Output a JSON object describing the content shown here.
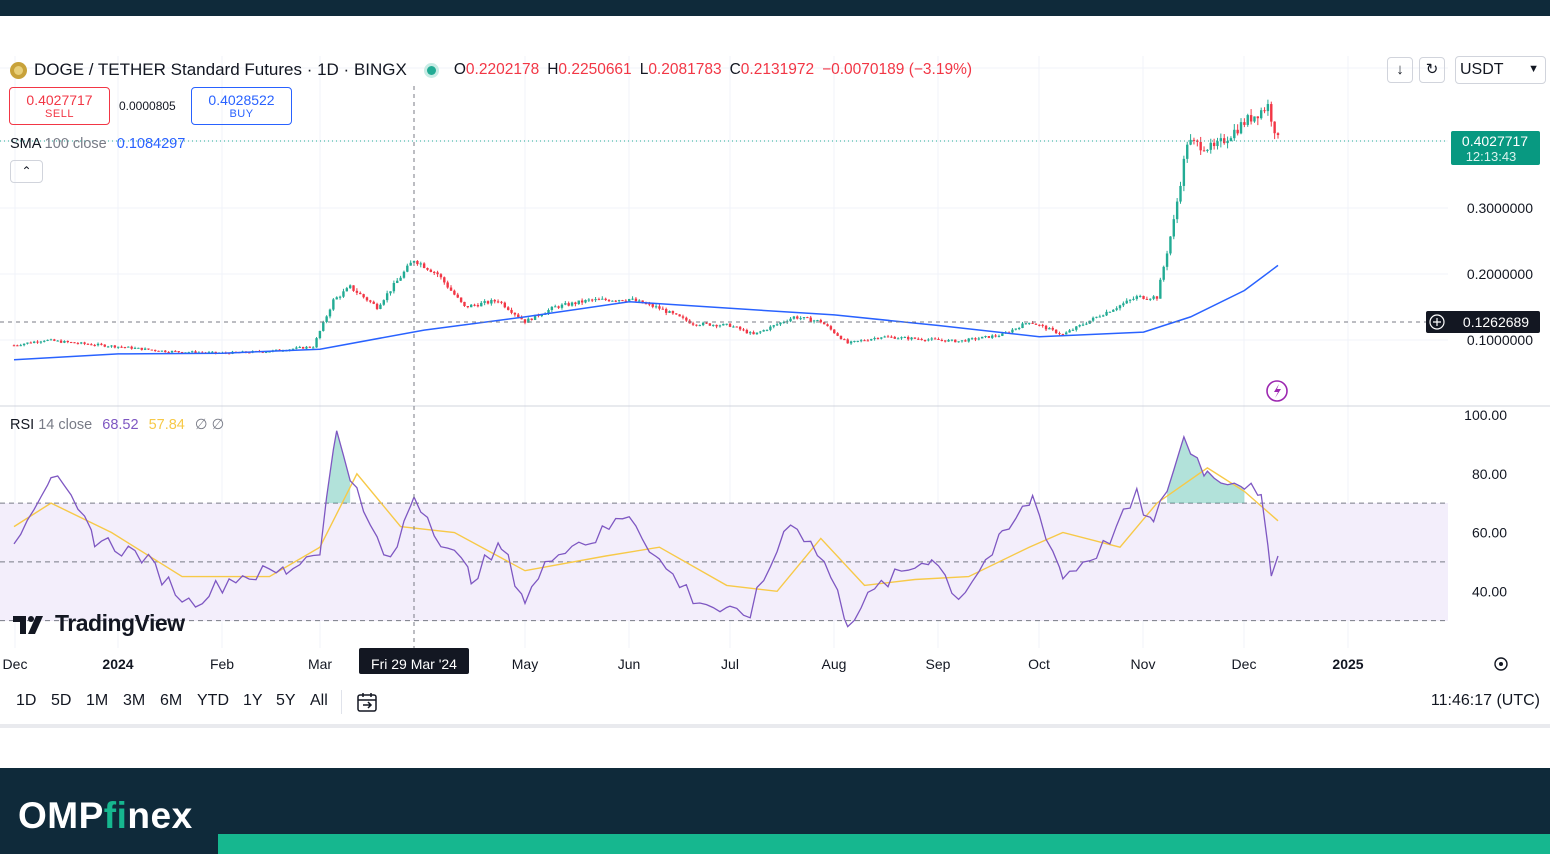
{
  "header": {
    "title": "DOGE / TETHER Standard Futures · 1D · BINGX",
    "ohlc": [
      {
        "k": "O",
        "v": "0.2202178"
      },
      {
        "k": "H",
        "v": "0.2250661"
      },
      {
        "k": "L",
        "v": "0.2081783"
      },
      {
        "k": "C",
        "v": "0.2131972"
      }
    ],
    "change": "−0.0070189 (−3.19%)"
  },
  "trade": {
    "sell_price": "0.4027717",
    "sell_label": "SELL",
    "spread": "0.0000805",
    "buy_price": "0.4028522",
    "buy_label": "BUY"
  },
  "sma_legend": {
    "name": "SMA",
    "params": "100 close",
    "value": "0.1084297"
  },
  "rsi_legend": {
    "name": "RSI",
    "params": "14 close",
    "rsi_value": "68.52",
    "ma_value": "57.84",
    "nulls": "∅ ∅"
  },
  "toolbar": {
    "currency": "USDT",
    "download_icon": "download-icon",
    "sync_icon": "sync-icon"
  },
  "branding": {
    "tradingview": "TradingView",
    "omp": "OMP",
    "fi": "fi",
    "nex": "nex"
  },
  "range_bar": {
    "buttons": [
      "1D",
      "5D",
      "1M",
      "3M",
      "6M",
      "YTD",
      "1Y",
      "5Y",
      "All"
    ],
    "clock": "11:46:17 (UTC)"
  },
  "colors": {
    "up": "#22ab94",
    "down": "#f23645",
    "sma": "#2962ff",
    "rsi": "#7e57c2",
    "rsi_ma": "#f7c948",
    "footer": "#0f2a3a",
    "accent": "#16b78f"
  },
  "chart_data": [
    {
      "type": "candlestick",
      "title": "DOGE / TETHER Standard Futures · 1D · BINGX",
      "x_ticks": [
        "Dec",
        "2024",
        "Feb",
        "Mar",
        "May",
        "Jun",
        "Jul",
        "Aug",
        "Sep",
        "Oct",
        "Nov",
        "Dec",
        "2025"
      ],
      "crosshair_date": "Fri 29 Mar '24",
      "crosshair_price": "0.1262689",
      "y_ticks": [
        "0.3000000",
        "0.2000000",
        "0.1000000"
      ],
      "ylim": [
        0.05,
        0.47
      ],
      "last_price": "0.4027717",
      "countdown": "12:13:43",
      "series": [
        {
          "name": "SMA 100 close",
          "points": [
            [
              "2023-12-01",
              0.07
            ],
            [
              "2024-01-01",
              0.079
            ],
            [
              "2024-02-01",
              0.08
            ],
            [
              "2024-03-01",
              0.086
            ],
            [
              "2024-04-01",
              0.115
            ],
            [
              "2024-05-01",
              0.135
            ],
            [
              "2024-06-01",
              0.158
            ],
            [
              "2024-07-01",
              0.148
            ],
            [
              "2024-08-01",
              0.138
            ],
            [
              "2024-09-01",
              0.122
            ],
            [
              "2024-10-01",
              0.105
            ],
            [
              "2024-11-01",
              0.112
            ],
            [
              "2024-11-15",
              0.135
            ],
            [
              "2024-12-01",
              0.175
            ],
            [
              "2024-12-11",
              0.213
            ]
          ]
        }
      ],
      "candles": [
        {
          "d": "2023-12-01",
          "c": 0.092
        },
        {
          "d": "2023-12-10",
          "c": 0.1
        },
        {
          "d": "2023-12-20",
          "c": 0.095
        },
        {
          "d": "2024-01-01",
          "c": 0.09
        },
        {
          "d": "2024-01-15",
          "c": 0.083
        },
        {
          "d": "2024-02-01",
          "c": 0.08
        },
        {
          "d": "2024-02-15",
          "c": 0.083
        },
        {
          "d": "2024-02-28",
          "c": 0.09
        },
        {
          "d": "2024-03-05",
          "c": 0.16
        },
        {
          "d": "2024-03-10",
          "c": 0.18
        },
        {
          "d": "2024-03-18",
          "c": 0.15
        },
        {
          "d": "2024-03-29",
          "c": 0.222
        },
        {
          "d": "2024-04-05",
          "c": 0.2
        },
        {
          "d": "2024-04-13",
          "c": 0.15
        },
        {
          "d": "2024-04-23",
          "c": 0.16
        },
        {
          "d": "2024-05-01",
          "c": 0.128
        },
        {
          "d": "2024-05-10",
          "c": 0.15
        },
        {
          "d": "2024-05-20",
          "c": 0.16
        },
        {
          "d": "2024-06-01",
          "c": 0.162
        },
        {
          "d": "2024-06-10",
          "c": 0.148
        },
        {
          "d": "2024-06-20",
          "c": 0.125
        },
        {
          "d": "2024-07-01",
          "c": 0.122
        },
        {
          "d": "2024-07-08",
          "c": 0.108
        },
        {
          "d": "2024-07-20",
          "c": 0.135
        },
        {
          "d": "2024-07-28",
          "c": 0.128
        },
        {
          "d": "2024-08-05",
          "c": 0.095
        },
        {
          "d": "2024-08-15",
          "c": 0.105
        },
        {
          "d": "2024-09-01",
          "c": 0.1
        },
        {
          "d": "2024-09-07",
          "c": 0.098
        },
        {
          "d": "2024-09-20",
          "c": 0.108
        },
        {
          "d": "2024-09-28",
          "c": 0.128
        },
        {
          "d": "2024-10-08",
          "c": 0.108
        },
        {
          "d": "2024-10-20",
          "c": 0.14
        },
        {
          "d": "2024-10-30",
          "c": 0.165
        },
        {
          "d": "2024-11-05",
          "c": 0.165
        },
        {
          "d": "2024-11-10",
          "c": 0.28
        },
        {
          "d": "2024-11-14",
          "c": 0.4
        },
        {
          "d": "2024-11-22",
          "c": 0.39
        },
        {
          "d": "2024-12-01",
          "c": 0.43
        },
        {
          "d": "2024-12-08",
          "c": 0.455
        },
        {
          "d": "2024-12-11",
          "c": 0.403
        }
      ]
    },
    {
      "type": "line",
      "title": "RSI 14 close",
      "y_ticks": [
        "100.00",
        "80.00",
        "60.00",
        "40.00"
      ],
      "ylim": [
        20,
        100
      ],
      "bands": [
        30,
        50,
        70
      ],
      "series": [
        {
          "name": "RSI 14 close",
          "points": [
            [
              "2023-12-01",
              58
            ],
            [
              "2023-12-12",
              80
            ],
            [
              "2023-12-25",
              58
            ],
            [
              "2024-01-08",
              52
            ],
            [
              "2024-01-22",
              36
            ],
            [
              "2024-02-05",
              45
            ],
            [
              "2024-02-20",
              47
            ],
            [
              "2024-03-01",
              55
            ],
            [
              "2024-03-06",
              95
            ],
            [
              "2024-03-14",
              66
            ],
            [
              "2024-03-22",
              49
            ],
            [
              "2024-03-29",
              73
            ],
            [
              "2024-04-06",
              58
            ],
            [
              "2024-04-15",
              45
            ],
            [
              "2024-04-24",
              55
            ],
            [
              "2024-05-01",
              37
            ],
            [
              "2024-05-11",
              55
            ],
            [
              "2024-05-22",
              58
            ],
            [
              "2024-06-01",
              67
            ],
            [
              "2024-06-10",
              50
            ],
            [
              "2024-06-20",
              38
            ],
            [
              "2024-07-01",
              32
            ],
            [
              "2024-07-07",
              33
            ],
            [
              "2024-07-19",
              65
            ],
            [
              "2024-07-29",
              50
            ],
            [
              "2024-08-05",
              30
            ],
            [
              "2024-08-15",
              42
            ],
            [
              "2024-08-30",
              52
            ],
            [
              "2024-09-07",
              38
            ],
            [
              "2024-09-20",
              58
            ],
            [
              "2024-09-29",
              72
            ],
            [
              "2024-10-08",
              45
            ],
            [
              "2024-10-20",
              55
            ],
            [
              "2024-10-30",
              72
            ],
            [
              "2024-11-04",
              62
            ],
            [
              "2024-11-13",
              92
            ],
            [
              "2024-11-20",
              80
            ],
            [
              "2024-12-01",
              77
            ],
            [
              "2024-12-06",
              70
            ],
            [
              "2024-12-09",
              48
            ],
            [
              "2024-12-11",
              52
            ]
          ]
        },
        {
          "name": "RSI-based MA",
          "points": [
            [
              "2023-12-01",
              62
            ],
            [
              "2023-12-12",
              70
            ],
            [
              "2023-12-30",
              60
            ],
            [
              "2024-01-20",
              45
            ],
            [
              "2024-02-15",
              45
            ],
            [
              "2024-03-01",
              55
            ],
            [
              "2024-03-12",
              80
            ],
            [
              "2024-03-25",
              62
            ],
            [
              "2024-04-10",
              60
            ],
            [
              "2024-05-01",
              47
            ],
            [
              "2024-05-25",
              52
            ],
            [
              "2024-06-10",
              55
            ],
            [
              "2024-06-30",
              42
            ],
            [
              "2024-07-15",
              40
            ],
            [
              "2024-07-28",
              58
            ],
            [
              "2024-08-10",
              42
            ],
            [
              "2024-08-25",
              44
            ],
            [
              "2024-09-10",
              45
            ],
            [
              "2024-09-28",
              55
            ],
            [
              "2024-10-08",
              60
            ],
            [
              "2024-10-25",
              55
            ],
            [
              "2024-11-05",
              70
            ],
            [
              "2024-11-20",
              82
            ],
            [
              "2024-12-01",
              74
            ],
            [
              "2024-12-11",
              64
            ]
          ]
        }
      ]
    }
  ]
}
